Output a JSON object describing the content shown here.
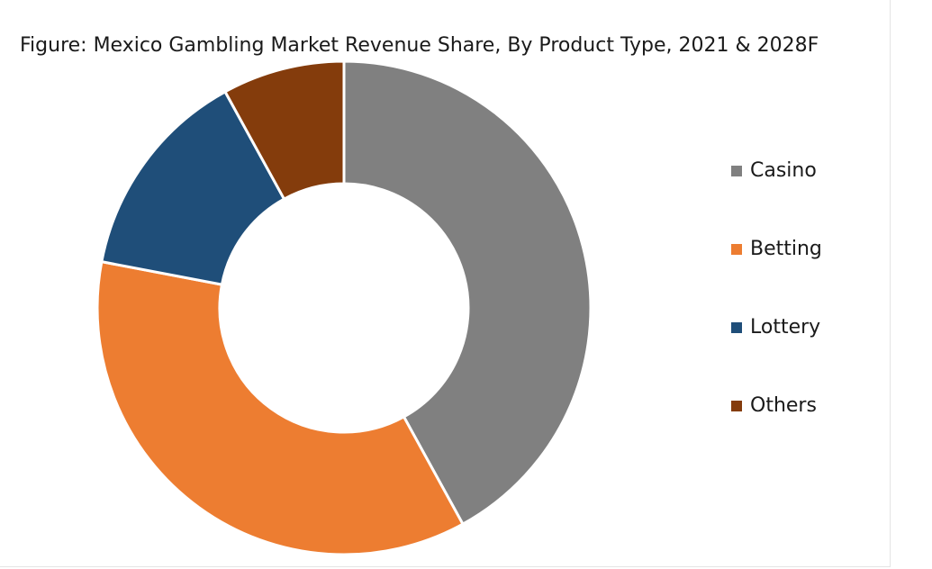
{
  "chart_data": {
    "type": "pie",
    "variant": "donut",
    "title": "Figure: Mexico Gambling Market Revenue Share, By Product Type, 2021 & 2028F",
    "categories": [
      "Casino",
      "Betting",
      "Lottery",
      "Others"
    ],
    "values": [
      42,
      36,
      14,
      8
    ],
    "colors": [
      "#808080",
      "#ED7D31",
      "#1F4E79",
      "#843C0C"
    ],
    "legend": "right",
    "data_labels": false
  }
}
